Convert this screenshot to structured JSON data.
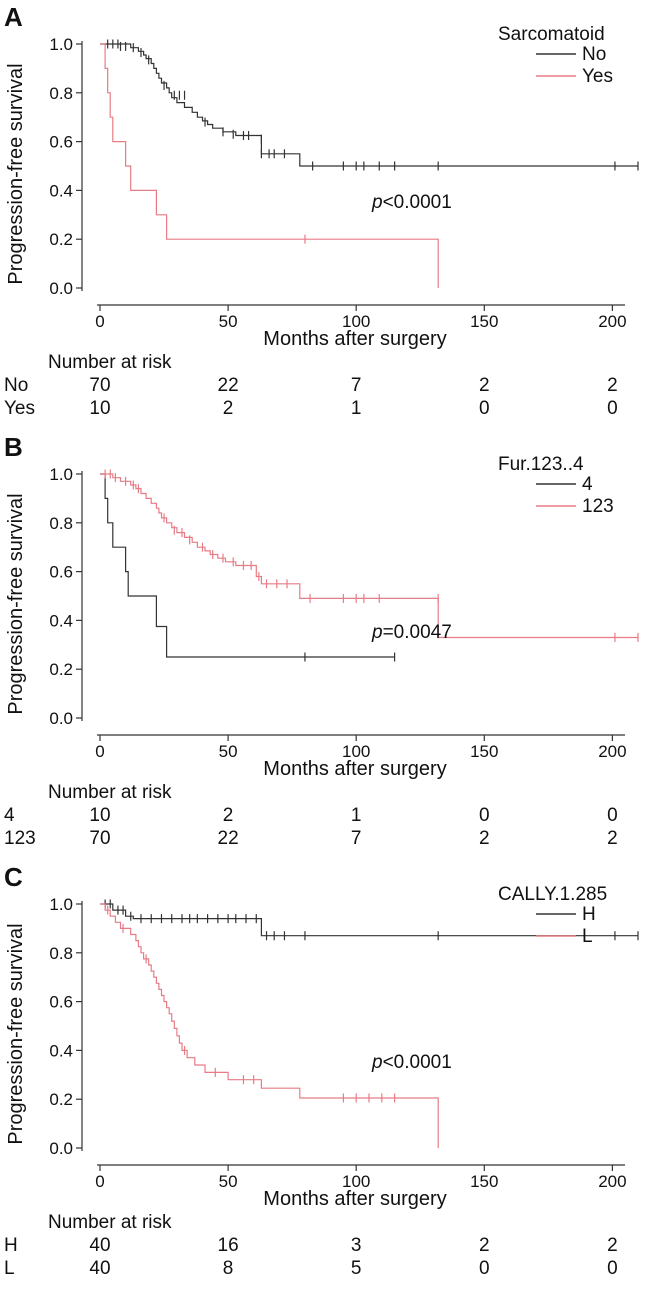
{
  "chart_data": [
    {
      "type": "line",
      "panel_label": "A",
      "xlabel": "Months after surgery",
      "ylabel": "Progression-free survival",
      "xlim": [
        0,
        210
      ],
      "ylim": [
        0,
        1
      ],
      "x_ticks": [
        0,
        50,
        100,
        150,
        200
      ],
      "y_ticks": [
        "0.0",
        "0.2",
        "0.4",
        "0.6",
        "0.8",
        "1.0"
      ],
      "legend_title": "Sarcomatoid",
      "legend_placement": "top-right",
      "p_value_label": "p",
      "p_value_text": "<0.0001",
      "series": [
        {
          "name": "No",
          "color": "#333333",
          "steps": [
            [
              0,
              1.0
            ],
            [
              12,
              0.985
            ],
            [
              15,
              0.97
            ],
            [
              17,
              0.955
            ],
            [
              18,
              0.94
            ],
            [
              20,
              0.92
            ],
            [
              21,
              0.9
            ],
            [
              22,
              0.88
            ],
            [
              23,
              0.86
            ],
            [
              24,
              0.84
            ],
            [
              26,
              0.82
            ],
            [
              27,
              0.8
            ],
            [
              28,
              0.78
            ],
            [
              30,
              0.76
            ],
            [
              33,
              0.74
            ],
            [
              36,
              0.72
            ],
            [
              38,
              0.7
            ],
            [
              40,
              0.685
            ],
            [
              42,
              0.67
            ],
            [
              44,
              0.655
            ],
            [
              48,
              0.64
            ],
            [
              53,
              0.625
            ],
            [
              63,
              0.55
            ],
            [
              78,
              0.5
            ],
            [
              210,
              0.5
            ]
          ],
          "censors": [
            [
              3,
              1.0
            ],
            [
              5,
              1.0
            ],
            [
              7,
              1.0
            ],
            [
              8,
              0.99
            ],
            [
              10,
              0.99
            ],
            [
              13,
              0.985
            ],
            [
              16,
              0.965
            ],
            [
              19,
              0.935
            ],
            [
              25,
              0.83
            ],
            [
              29,
              0.79
            ],
            [
              31,
              0.79
            ],
            [
              33,
              0.79
            ],
            [
              41,
              0.68
            ],
            [
              48,
              0.64
            ],
            [
              52,
              0.63
            ],
            [
              56,
              0.625
            ],
            [
              58,
              0.625
            ],
            [
              63,
              0.61
            ],
            [
              63,
              0.55
            ],
            [
              66,
              0.55
            ],
            [
              68,
              0.55
            ],
            [
              72,
              0.55
            ],
            [
              83,
              0.5
            ],
            [
              95,
              0.5
            ],
            [
              100,
              0.5
            ],
            [
              103,
              0.5
            ],
            [
              109,
              0.5
            ],
            [
              115,
              0.5
            ],
            [
              132,
              0.5
            ],
            [
              201,
              0.5
            ],
            [
              210,
              0.5
            ]
          ]
        },
        {
          "name": "Yes",
          "color": "#e87c86",
          "steps": [
            [
              0,
              1.0
            ],
            [
              2,
              0.9
            ],
            [
              3,
              0.8
            ],
            [
              4,
              0.7
            ],
            [
              5,
              0.6
            ],
            [
              10,
              0.5
            ],
            [
              12,
              0.4
            ],
            [
              22,
              0.3
            ],
            [
              26,
              0.2
            ],
            [
              132,
              0.0
            ]
          ],
          "censors": [
            [
              80,
              0.2
            ]
          ]
        }
      ],
      "risk_table": {
        "title": "Number at risk",
        "times": [
          0,
          50,
          100,
          150,
          200
        ],
        "rows": [
          {
            "label": "No",
            "counts": [
              "70",
              "22",
              "7",
              "2",
              "2"
            ]
          },
          {
            "label": "Yes",
            "counts": [
              "10",
              "2",
              "1",
              "0",
              "0"
            ]
          }
        ]
      }
    },
    {
      "type": "line",
      "panel_label": "B",
      "xlabel": "Months after surgery",
      "ylabel": "Progression-free survival",
      "xlim": [
        0,
        210
      ],
      "ylim": [
        0,
        1
      ],
      "x_ticks": [
        0,
        50,
        100,
        150,
        200
      ],
      "y_ticks": [
        "0.0",
        "0.2",
        "0.4",
        "0.6",
        "0.8",
        "1.0"
      ],
      "legend_title": "Fur.123..4",
      "legend_placement": "top-right",
      "p_value_label": "p",
      "p_value_text": "=0.0047",
      "series": [
        {
          "name": "4",
          "color": "#333333",
          "steps": [
            [
              0,
              1.0
            ],
            [
              2,
              0.9
            ],
            [
              3,
              0.8
            ],
            [
              5,
              0.7
            ],
            [
              10,
              0.6
            ],
            [
              11,
              0.5
            ],
            [
              22,
              0.375
            ],
            [
              26,
              0.25
            ],
            [
              115,
              0.25
            ]
          ],
          "censors": [
            [
              80,
              0.25
            ],
            [
              115,
              0.25
            ]
          ]
        },
        {
          "name": "123",
          "color": "#e87c86",
          "steps": [
            [
              0,
              1.0
            ],
            [
              5,
              0.985
            ],
            [
              8,
              0.97
            ],
            [
              12,
              0.955
            ],
            [
              14,
              0.94
            ],
            [
              16,
              0.92
            ],
            [
              18,
              0.9
            ],
            [
              20,
              0.88
            ],
            [
              22,
              0.86
            ],
            [
              23,
              0.84
            ],
            [
              24,
              0.82
            ],
            [
              26,
              0.8
            ],
            [
              28,
              0.78
            ],
            [
              30,
              0.76
            ],
            [
              33,
              0.74
            ],
            [
              36,
              0.72
            ],
            [
              38,
              0.7
            ],
            [
              41,
              0.685
            ],
            [
              43,
              0.67
            ],
            [
              46,
              0.655
            ],
            [
              49,
              0.64
            ],
            [
              53,
              0.625
            ],
            [
              61,
              0.58
            ],
            [
              63,
              0.55
            ],
            [
              78,
              0.49
            ],
            [
              132,
              0.33
            ],
            [
              210,
              0.33
            ]
          ],
          "censors": [
            [
              2,
              1.0
            ],
            [
              4,
              1.0
            ],
            [
              6,
              0.985
            ],
            [
              10,
              0.97
            ],
            [
              13,
              0.955
            ],
            [
              15,
              0.94
            ],
            [
              25,
              0.82
            ],
            [
              29,
              0.77
            ],
            [
              32,
              0.76
            ],
            [
              35,
              0.73
            ],
            [
              40,
              0.7
            ],
            [
              44,
              0.67
            ],
            [
              48,
              0.655
            ],
            [
              52,
              0.64
            ],
            [
              56,
              0.625
            ],
            [
              59,
              0.625
            ],
            [
              62,
              0.58
            ],
            [
              65,
              0.55
            ],
            [
              69,
              0.55
            ],
            [
              73,
              0.55
            ],
            [
              82,
              0.49
            ],
            [
              95,
              0.49
            ],
            [
              100,
              0.49
            ],
            [
              103,
              0.49
            ],
            [
              109,
              0.49
            ],
            [
              132,
              0.49
            ],
            [
              201,
              0.33
            ],
            [
              210,
              0.33
            ]
          ]
        }
      ],
      "risk_table": {
        "title": "Number at risk",
        "times": [
          0,
          50,
          100,
          150,
          200
        ],
        "rows": [
          {
            "label": "4",
            "counts": [
              "10",
              "2",
              "1",
              "0",
              "0"
            ]
          },
          {
            "label": "123",
            "counts": [
              "70",
              "22",
              "7",
              "2",
              "2"
            ]
          }
        ]
      }
    },
    {
      "type": "line",
      "panel_label": "C",
      "xlabel": "Months after surgery",
      "ylabel": "Progression-free survival",
      "xlim": [
        0,
        210
      ],
      "ylim": [
        0,
        1
      ],
      "x_ticks": [
        0,
        50,
        100,
        150,
        200
      ],
      "y_ticks": [
        "0.0",
        "0.2",
        "0.4",
        "0.6",
        "0.8",
        "1.0"
      ],
      "legend_title": "CALLY.1.285",
      "legend_placement": "top-right",
      "p_value_label": "p",
      "p_value_text": "<0.0001",
      "series": [
        {
          "name": "H",
          "color": "#333333",
          "steps": [
            [
              0,
              1.0
            ],
            [
              5,
              0.975
            ],
            [
              10,
              0.95
            ],
            [
              13,
              0.94
            ],
            [
              63,
              0.87
            ],
            [
              210,
              0.87
            ]
          ],
          "censors": [
            [
              2,
              1.0
            ],
            [
              4,
              1.0
            ],
            [
              7,
              0.975
            ],
            [
              9,
              0.975
            ],
            [
              12,
              0.95
            ],
            [
              16,
              0.94
            ],
            [
              20,
              0.94
            ],
            [
              24,
              0.94
            ],
            [
              28,
              0.94
            ],
            [
              32,
              0.94
            ],
            [
              35,
              0.94
            ],
            [
              38,
              0.94
            ],
            [
              42,
              0.94
            ],
            [
              46,
              0.94
            ],
            [
              50,
              0.94
            ],
            [
              53,
              0.94
            ],
            [
              57,
              0.94
            ],
            [
              61,
              0.94
            ],
            [
              65,
              0.87
            ],
            [
              68,
              0.87
            ],
            [
              72,
              0.87
            ],
            [
              80,
              0.87
            ],
            [
              132,
              0.87
            ],
            [
              201,
              0.87
            ],
            [
              210,
              0.87
            ]
          ]
        },
        {
          "name": "L",
          "color": "#e87c86",
          "steps": [
            [
              0,
              1.0
            ],
            [
              2,
              0.975
            ],
            [
              4,
              0.95
            ],
            [
              6,
              0.925
            ],
            [
              8,
              0.9
            ],
            [
              12,
              0.875
            ],
            [
              14,
              0.85
            ],
            [
              15,
              0.825
            ],
            [
              16,
              0.8
            ],
            [
              17,
              0.775
            ],
            [
              19,
              0.75
            ],
            [
              20,
              0.725
            ],
            [
              21,
              0.7
            ],
            [
              22,
              0.675
            ],
            [
              23,
              0.65
            ],
            [
              24,
              0.625
            ],
            [
              25,
              0.6
            ],
            [
              26,
              0.575
            ],
            [
              27,
              0.55
            ],
            [
              28,
              0.52
            ],
            [
              29,
              0.49
            ],
            [
              30,
              0.46
            ],
            [
              31,
              0.43
            ],
            [
              32,
              0.4
            ],
            [
              34,
              0.37
            ],
            [
              37,
              0.34
            ],
            [
              41,
              0.31
            ],
            [
              50,
              0.28
            ],
            [
              63,
              0.245
            ],
            [
              78,
              0.205
            ],
            [
              132,
              0.0
            ]
          ],
          "censors": [
            [
              3,
              0.975
            ],
            [
              9,
              0.9
            ],
            [
              18,
              0.775
            ],
            [
              33,
              0.4
            ],
            [
              45,
              0.31
            ],
            [
              56,
              0.28
            ],
            [
              60,
              0.28
            ],
            [
              95,
              0.205
            ],
            [
              100,
              0.205
            ],
            [
              105,
              0.205
            ],
            [
              110,
              0.205
            ],
            [
              115,
              0.205
            ]
          ]
        }
      ],
      "risk_table": {
        "title": "Number at risk",
        "times": [
          0,
          50,
          100,
          150,
          200
        ],
        "rows": [
          {
            "label": "H",
            "counts": [
              "40",
              "16",
              "3",
              "2",
              "2"
            ]
          },
          {
            "label": "L",
            "counts": [
              "40",
              "8",
              "5",
              "0",
              "0"
            ]
          }
        ]
      }
    }
  ]
}
